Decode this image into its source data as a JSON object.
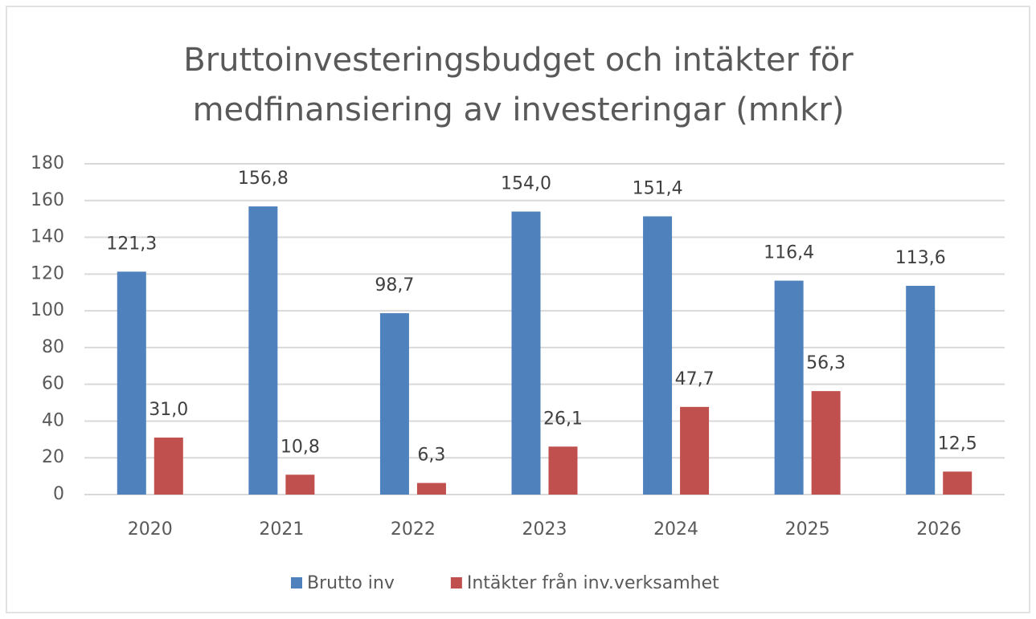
{
  "chart_data": {
    "type": "bar",
    "title": "Bruttoinvesteringsbudget och intäkter för medfinansiering av investeringar (mnkr)",
    "categories": [
      "2020",
      "2021",
      "2022",
      "2023",
      "2024",
      "2025",
      "2026"
    ],
    "series": [
      {
        "name": "Brutto inv",
        "color": "#4f81bd",
        "values": [
          121.3,
          156.8,
          98.7,
          154.0,
          151.4,
          116.4,
          113.6
        ],
        "value_labels": [
          "121,3",
          "156,8",
          "98,7",
          "154,0",
          "151,4",
          "116,4",
          "113,6"
        ]
      },
      {
        "name": "Intäkter från inv.verksamhet",
        "color": "#c0504d",
        "values": [
          31.0,
          10.8,
          6.3,
          26.1,
          47.7,
          56.3,
          12.5
        ],
        "value_labels": [
          "31,0",
          "10,8",
          "6,3",
          "26,1",
          "47,7",
          "56,3",
          "12,5"
        ]
      }
    ],
    "ylim": [
      0,
      180
    ],
    "yticks": [
      0,
      20,
      40,
      60,
      80,
      100,
      120,
      140,
      160,
      180
    ],
    "grid": true,
    "legend": "bottom"
  }
}
